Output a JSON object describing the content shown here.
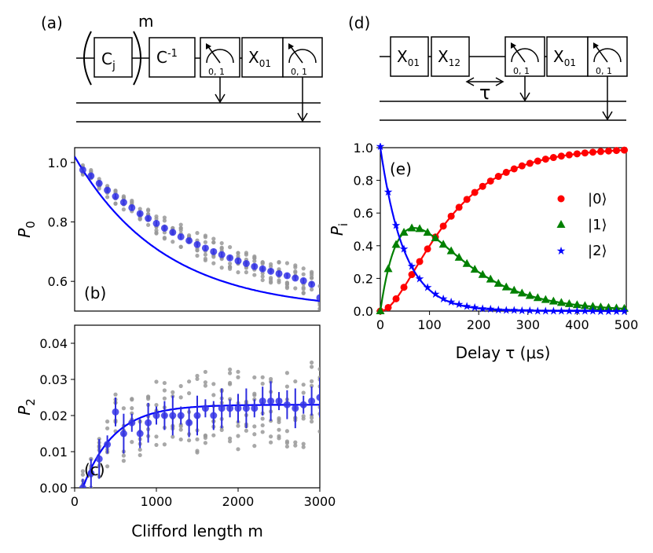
{
  "circuit_a": {
    "label": "(a)",
    "gates": [
      "C",
      "C",
      "X",
      "0, 1",
      "0, 1"
    ],
    "gate_sub": [
      "j",
      "-1",
      "01"
    ],
    "exponent": "m"
  },
  "circuit_d": {
    "label": "(d)",
    "gates": [
      "X",
      "X",
      "X",
      "0, 1",
      "0, 1"
    ],
    "gate_sub": [
      "01",
      "12",
      "01"
    ],
    "delay": "τ"
  },
  "chart_data": [
    {
      "id": "b",
      "type": "scatter",
      "panel_label": "(b)",
      "ylabel": "P",
      "ylabel_sub": "0",
      "xlabel": "",
      "xlim": [
        0,
        3000
      ],
      "ylim": [
        0.5,
        1.05
      ],
      "yticks": [
        "0.6",
        "0.8",
        "1.0"
      ],
      "ytick_values": [
        0.6,
        0.8,
        1.0
      ],
      "fit": {
        "A": 0.52,
        "tau": 1100,
        "B": 0.5,
        "color": "#0000ff"
      },
      "means": [
        [
          100,
          0.975
        ],
        [
          200,
          0.955
        ],
        [
          300,
          0.93
        ],
        [
          400,
          0.907
        ],
        [
          500,
          0.886
        ],
        [
          600,
          0.866
        ],
        [
          700,
          0.848
        ],
        [
          800,
          0.828
        ],
        [
          900,
          0.812
        ],
        [
          1000,
          0.795
        ],
        [
          1100,
          0.779
        ],
        [
          1200,
          0.765
        ],
        [
          1300,
          0.75
        ],
        [
          1400,
          0.737
        ],
        [
          1500,
          0.724
        ],
        [
          1600,
          0.712
        ],
        [
          1700,
          0.7
        ],
        [
          1800,
          0.69
        ],
        [
          1900,
          0.679
        ],
        [
          2000,
          0.669
        ],
        [
          2100,
          0.66
        ],
        [
          2200,
          0.65
        ],
        [
          2300,
          0.642
        ],
        [
          2400,
          0.634
        ],
        [
          2500,
          0.626
        ],
        [
          2600,
          0.619
        ],
        [
          2700,
          0.611
        ],
        [
          2800,
          0.602
        ],
        [
          2900,
          0.59
        ],
        [
          3000,
          0.545
        ]
      ],
      "spread": 0.045,
      "seed": 11,
      "samples_per_m": 7
    },
    {
      "id": "c",
      "type": "scatter",
      "panel_label": "(c)",
      "ylabel": "P",
      "ylabel_sub": "2",
      "xlabel": "Clifford length m",
      "xlim": [
        0,
        3000
      ],
      "ylim": [
        0,
        0.045
      ],
      "xticks": [
        "0",
        "1000",
        "2000",
        "3000"
      ],
      "xtick_values": [
        0,
        1000,
        2000,
        3000
      ],
      "yticks": [
        "0.00",
        "0.01",
        "0.02",
        "0.03",
        "0.04"
      ],
      "ytick_values": [
        0,
        0.01,
        0.02,
        0.03,
        0.04
      ],
      "fit": {
        "A": 0.023,
        "tau": 380,
        "x0": 100,
        "color": "#0000ff"
      },
      "means": [
        [
          100,
          0.0
        ],
        [
          200,
          0.004
        ],
        [
          300,
          0.008
        ],
        [
          400,
          0.012
        ],
        [
          500,
          0.021
        ],
        [
          600,
          0.015
        ],
        [
          700,
          0.018
        ],
        [
          800,
          0.015
        ],
        [
          900,
          0.018
        ],
        [
          1000,
          0.02
        ],
        [
          1100,
          0.02
        ],
        [
          1200,
          0.02
        ],
        [
          1300,
          0.02
        ],
        [
          1400,
          0.018
        ],
        [
          1500,
          0.02
        ],
        [
          1600,
          0.022
        ],
        [
          1700,
          0.02
        ],
        [
          1800,
          0.022
        ],
        [
          1900,
          0.022
        ],
        [
          2000,
          0.022
        ],
        [
          2100,
          0.022
        ],
        [
          2200,
          0.022
        ],
        [
          2300,
          0.024
        ],
        [
          2400,
          0.024
        ],
        [
          2500,
          0.024
        ],
        [
          2600,
          0.023
        ],
        [
          2700,
          0.022
        ],
        [
          2800,
          0.023
        ],
        [
          2900,
          0.024
        ],
        [
          3000,
          0.025
        ]
      ],
      "spread": 0.012,
      "seed": 23,
      "samples_per_m": 7
    },
    {
      "id": "e",
      "type": "scatter",
      "panel_label": "(e)",
      "ylabel": "P",
      "ylabel_sub": "i",
      "xlabel": "Delay τ (μs)",
      "xlim": [
        0,
        500
      ],
      "ylim": [
        0,
        1.0
      ],
      "xticks": [
        "0",
        "100",
        "200",
        "300",
        "400",
        "500"
      ],
      "xtick_values": [
        0,
        100,
        200,
        300,
        400,
        500
      ],
      "yticks": [
        "0.0",
        "0.2",
        "0.4",
        "0.6",
        "0.8",
        "1.0"
      ],
      "ytick_values": [
        0,
        0.2,
        0.4,
        0.6,
        0.8,
        1.0
      ],
      "rates": {
        "k2": 0.0205,
        "k1": 0.0098
      },
      "x_samples": [
        0,
        16,
        32,
        48,
        64,
        80,
        96,
        112,
        128,
        144,
        160,
        176,
        192,
        208,
        224,
        240,
        256,
        272,
        288,
        304,
        320,
        336,
        352,
        368,
        384,
        400,
        416,
        432,
        448,
        464,
        480,
        496
      ],
      "series": [
        {
          "name": "|0⟩",
          "color": "#ff0000",
          "marker": "circle"
        },
        {
          "name": "|1⟩",
          "color": "#008000",
          "marker": "triangle"
        },
        {
          "name": "|2⟩",
          "color": "#0000ff",
          "marker": "star"
        }
      ]
    }
  ]
}
